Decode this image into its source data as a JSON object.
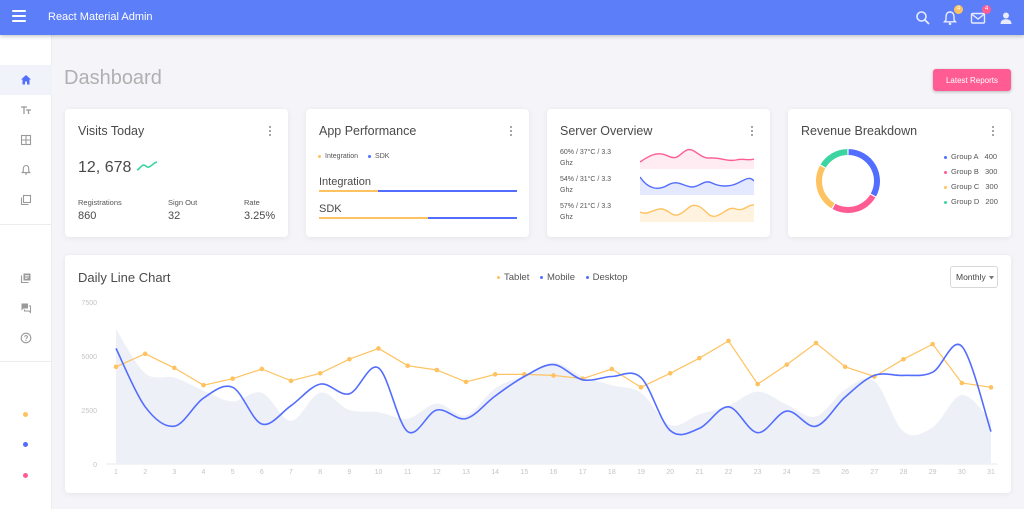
{
  "app": {
    "title": "React Material Admin"
  },
  "header": {
    "notifications_badge": "4",
    "messages_badge": "4"
  },
  "page": {
    "title": "Dashboard",
    "latest_reports_label": "Latest Reports"
  },
  "visits": {
    "title": "Visits Today",
    "total": "12, 678",
    "stats": [
      {
        "label": "Registrations",
        "value": "860"
      },
      {
        "label": "Sign Out",
        "value": "32"
      },
      {
        "label": "Rate",
        "value": "3.25%"
      }
    ]
  },
  "performance": {
    "title": "App Performance",
    "legend": [
      {
        "label": "Integration",
        "color": "#ffc260"
      },
      {
        "label": "SDK",
        "color": "#536dfe"
      }
    ],
    "bars": [
      {
        "label": "Integration",
        "value": 0.3
      },
      {
        "label": "SDK",
        "value": 0.55
      }
    ]
  },
  "server": {
    "title": "Server Overview",
    "rows": [
      {
        "line1": "60% / 37°C / 3.3",
        "line2": "Ghz",
        "color": "#ff5c93"
      },
      {
        "line1": "54% / 31°C / 3.3",
        "line2": "Ghz",
        "color": "#536dfe"
      },
      {
        "line1": "57% / 21°C / 3.3",
        "line2": "Ghz",
        "color": "#ffc260"
      }
    ]
  },
  "revenue": {
    "title": "Revenue Breakdown",
    "groups": [
      {
        "name": "Group A",
        "value": "400",
        "color": "#536dfe"
      },
      {
        "name": "Group B",
        "value": "300",
        "color": "#ff5c93"
      },
      {
        "name": "Group C",
        "value": "300",
        "color": "#ffc260"
      },
      {
        "name": "Group D",
        "value": "200",
        "color": "#3cd4a0"
      }
    ]
  },
  "daily": {
    "title": "Daily Line Chart",
    "period": "Monthly",
    "legend": [
      {
        "name": "Tablet",
        "color": "#ffc260"
      },
      {
        "name": "Mobile",
        "color": "#536dfe"
      },
      {
        "name": "Desktop",
        "color": "#536dfe"
      }
    ]
  },
  "chart_data": {
    "type": "line",
    "x": [
      1,
      2,
      3,
      4,
      5,
      6,
      7,
      8,
      9,
      10,
      11,
      12,
      13,
      14,
      15,
      16,
      17,
      18,
      19,
      20,
      21,
      22,
      23,
      24,
      25,
      26,
      27,
      28,
      29,
      30,
      31
    ],
    "y_ticks": [
      0,
      2500,
      5000,
      7500
    ],
    "ylim": [
      0,
      7500
    ],
    "series": [
      {
        "name": "Tablet",
        "color": "#ffc260",
        "kind": "line-dots",
        "values": [
          4500,
          5100,
          4450,
          3650,
          3950,
          4400,
          3850,
          4200,
          4850,
          5350,
          4550,
          4350,
          3800,
          4150,
          4150,
          4100,
          3950,
          4400,
          3550,
          4200,
          4900,
          5700,
          3700,
          4600,
          5600,
          4500,
          4050,
          4850,
          5550,
          3750,
          3550
        ]
      },
      {
        "name": "Mobile",
        "color": "#eef0f8",
        "kind": "area",
        "values": [
          6250,
          4200,
          4000,
          3400,
          2900,
          3300,
          2000,
          3300,
          2500,
          2400,
          2100,
          2800,
          2250,
          3500,
          4100,
          4700,
          4050,
          3650,
          3300,
          1800,
          2300,
          2700,
          3350,
          2750,
          2200,
          3450,
          3850,
          1500,
          1700,
          3200,
          2000
        ]
      },
      {
        "name": "Desktop",
        "color": "#536dfe",
        "kind": "line",
        "values": [
          5350,
          2650,
          1750,
          3050,
          3550,
          1850,
          2700,
          3700,
          3250,
          4450,
          1500,
          2500,
          2100,
          3150,
          4050,
          4600,
          3900,
          4050,
          4000,
          1550,
          1650,
          2650,
          1450,
          2450,
          1750,
          3100,
          4100,
          4100,
          4250,
          5450,
          1500
        ]
      }
    ]
  }
}
